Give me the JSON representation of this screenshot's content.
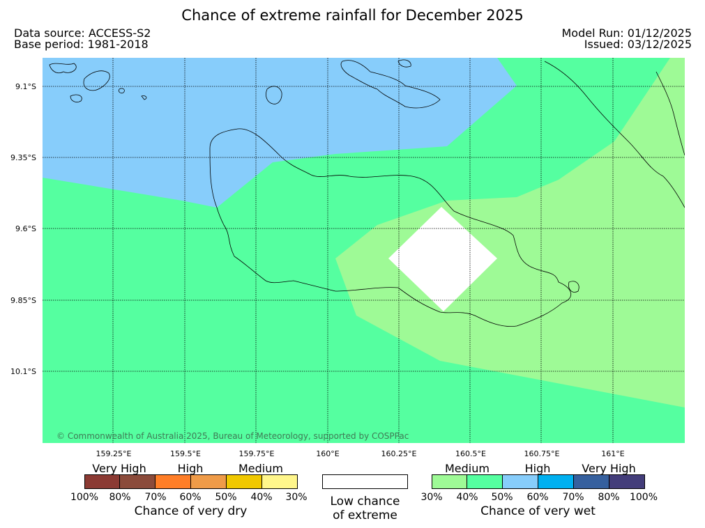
{
  "header": {
    "title": "Chance of extreme rainfall for December 2025",
    "data_source": "Data source: ACCESS-S2",
    "base_period": "Base period: 1981-2018",
    "model_run": "Model Run: 01/12/2025",
    "issued": "Issued: 03/12/2025"
  },
  "map": {
    "lat_labels": [
      "9.1°S",
      "9.35°S",
      "9.6°S",
      "9.85°S",
      "10.1°S"
    ],
    "lon_labels": [
      "159.25°E",
      "159.5°E",
      "159.75°E",
      "160°E",
      "160.25°E",
      "160.5°E",
      "160.75°E",
      "161°E"
    ],
    "copyright": "© Commonwealth of Australia 2025, Bureau of Meteorology, supported by COSPPac",
    "colors": {
      "wet_40_50": "#55ffa0",
      "wet_30_40": "#9efa96",
      "wet_50_60": "#87cdfb",
      "low": "#ffffff"
    }
  },
  "legend": {
    "dry": {
      "categories": [
        "Very High",
        "High",
        "Medium"
      ],
      "colors": [
        "#8b3a33",
        "#8b4b3b",
        "#ff7e27",
        "#ef9b48",
        "#f0c800",
        "#fff68b"
      ],
      "ticks": [
        "100%",
        "80%",
        "70%",
        "60%",
        "50%",
        "40%",
        "30%"
      ],
      "caption": "Chance of very dry"
    },
    "low": {
      "caption_line1": "Low chance",
      "caption_line2": "of extreme"
    },
    "wet": {
      "categories": [
        "Medium",
        "High",
        "Very High"
      ],
      "colors": [
        "#9efa96",
        "#55ffa0",
        "#87cdfb",
        "#00b0f0",
        "#36609e",
        "#433d7a"
      ],
      "ticks": [
        "30%",
        "40%",
        "50%",
        "60%",
        "70%",
        "80%",
        "100%"
      ],
      "caption": "Chance of very wet"
    }
  }
}
